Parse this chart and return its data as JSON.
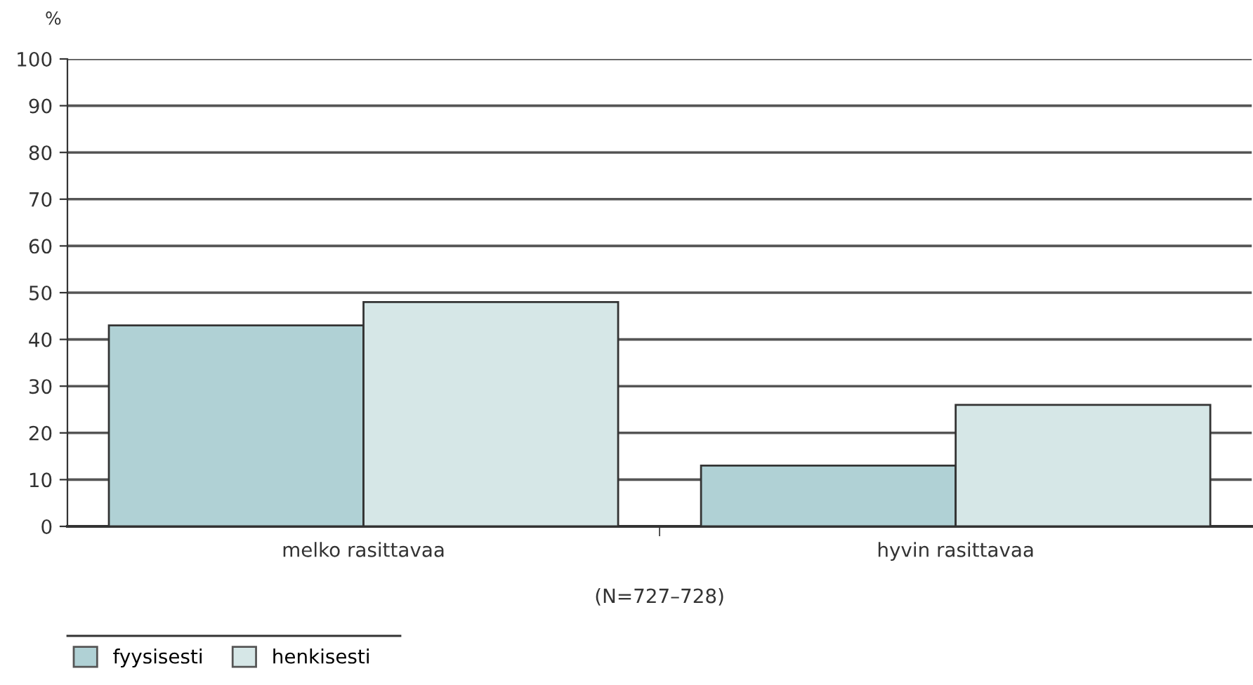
{
  "chart_data": {
    "type": "bar",
    "ylabel": "%",
    "xlabel": "(N=727–728)",
    "categories": [
      "melko rasittavaa",
      "hyvin rasittavaa"
    ],
    "series": [
      {
        "name": "fyysisesti",
        "color": "#b0d1d5",
        "values": [
          43,
          13
        ]
      },
      {
        "name": "henkisesti",
        "color": "#d6e7e7",
        "values": [
          48,
          26
        ]
      }
    ],
    "ylim": [
      0,
      100
    ],
    "yticks": [
      0,
      10,
      20,
      30,
      40,
      50,
      60,
      70,
      80,
      90,
      100
    ],
    "grid": "y",
    "legend": "bottom left"
  }
}
